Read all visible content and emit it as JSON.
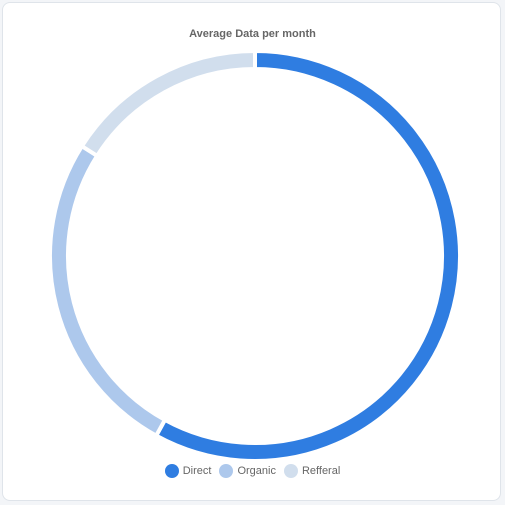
{
  "chart_data": {
    "type": "pie",
    "variant": "doughnut",
    "title": "Average Data per month",
    "categories": [
      "Direct",
      "Organic",
      "Refferal"
    ],
    "values": [
      58,
      26,
      16
    ],
    "colors": [
      "#2f7de1",
      "#adc8ec",
      "#d1deed"
    ],
    "legend_position": "bottom"
  }
}
